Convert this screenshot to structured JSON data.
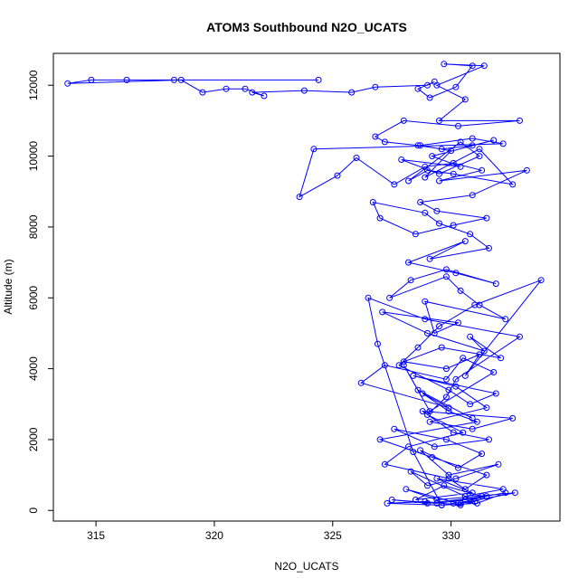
{
  "chart_data": {
    "type": "line",
    "title": "ATOM3 Southbound N2O_UCATS",
    "xlabel": "N2O_UCATS",
    "ylabel": "Altitude (m)",
    "xlim": [
      313.2,
      334.6
    ],
    "ylim": [
      -300,
      12900
    ],
    "x_ticks": [
      315,
      320,
      325,
      330
    ],
    "x_tick_labels": [
      "315",
      "320",
      "325",
      "330"
    ],
    "y_ticks": [
      0,
      2000,
      4000,
      6000,
      8000,
      10000,
      12000
    ],
    "y_tick_labels": [
      "0",
      "2000",
      "4000",
      "6000",
      "8000",
      "10000",
      "12000"
    ],
    "grid": false,
    "series": [
      {
        "color": "#0000ff",
        "marker": "open-circle",
        "x": [
          324.4,
          318.3,
          316.3,
          314.8,
          313.8,
          318.6,
          319.5,
          320.5,
          321.3,
          322.1,
          321.6,
          323.8,
          325.8,
          326.8,
          329.0,
          329.3,
          328.6,
          329.1,
          330.2,
          330.9,
          329.7,
          331.4,
          329.4,
          330.6,
          329.5,
          332.9,
          330.3,
          328.0,
          326.8,
          327.2,
          328.6,
          329.6,
          330.9,
          331.8,
          329.2,
          330.4,
          327.9,
          329.5,
          331.2,
          330.4,
          328.2,
          329.0,
          330.1,
          332.6,
          331.2,
          328.9,
          330.0,
          328.7,
          330.9,
          332.2,
          324.2,
          323.6,
          325.2,
          326.0,
          327.6,
          328.9,
          330.1,
          331.3,
          329.5,
          333.2,
          330.9,
          328.7,
          329.4,
          331.5,
          330.1,
          328.5,
          327.0,
          326.7,
          328.9,
          329.5,
          330.8,
          331.6,
          329.1,
          330.6,
          328.2,
          330.2,
          331.9,
          329.8,
          328.3,
          327.4,
          329.8,
          330.4,
          331.2,
          332.3,
          328.9,
          329.3,
          330.3,
          327.1,
          329.0,
          331.4,
          330.8,
          332.1,
          329.6,
          328.0,
          329.8,
          331.2,
          330.6,
          333.8,
          331.0,
          329.5,
          328.6,
          327.8,
          329.9,
          330.8,
          331.9,
          328.4,
          330.2,
          331.5,
          329.1,
          330.9,
          332.6,
          328.8,
          330.1,
          331.6,
          329.3,
          327.6,
          329.8,
          331.3,
          330.3,
          328.7,
          329.9,
          332.0,
          330.2,
          329.0,
          328.3,
          330.6,
          332.2,
          329.4,
          330.9,
          328.5,
          329.7,
          331.3,
          330.4,
          332.7,
          329.4,
          328.1,
          330.3,
          331.5,
          329.0,
          327.5,
          329.4,
          330.6,
          332.3,
          331.1,
          329.6,
          327.3,
          328.9,
          330.4,
          331.0,
          330.1,
          329.6,
          328.4,
          326.9,
          326.5,
          328.9,
          332.9,
          330.2,
          329.8,
          329.0,
          330.5,
          328.2,
          327.2,
          329.9,
          330.6,
          331.5,
          329.2,
          327.0,
          331.1,
          329.9,
          328.8,
          329.9,
          326.2,
          327.2,
          329.8,
          330.5,
          331.8,
          329.1,
          328.0,
          328.6,
          330.9
        ],
        "y": [
          12150,
          12150,
          12150,
          12150,
          12050,
          12150,
          11800,
          11900,
          11900,
          11700,
          11800,
          11850,
          11800,
          11950,
          12000,
          12100,
          11900,
          11650,
          11950,
          12550,
          12600,
          12550,
          12000,
          11600,
          11000,
          11000,
          10850,
          11000,
          10550,
          10400,
          10300,
          10200,
          10300,
          10450,
          10000,
          9700,
          9900,
          9500,
          10000,
          10400,
          9300,
          9600,
          9500,
          9200,
          10200,
          9400,
          10150,
          10300,
          10500,
          10350,
          10200,
          8850,
          9450,
          9950,
          9200,
          9700,
          9800,
          9600,
          9300,
          9600,
          8900,
          8700,
          8450,
          8250,
          8050,
          7800,
          8250,
          8700,
          8400,
          8100,
          7800,
          7400,
          7100,
          7600,
          7000,
          6700,
          6400,
          6800,
          6500,
          6000,
          6600,
          6200,
          5800,
          5400,
          5900,
          5000,
          5300,
          5600,
          5000,
          4500,
          4900,
          4300,
          4600,
          4200,
          4000,
          4400,
          3800,
          6500,
          5800,
          5200,
          4600,
          4100,
          3400,
          3000,
          3300,
          3800,
          3500,
          2900,
          2500,
          2300,
          2600,
          2800,
          2200,
          2000,
          1800,
          2300,
          2000,
          1600,
          1200,
          1700,
          1000,
          1300,
          900,
          700,
          1100,
          400,
          600,
          900,
          500,
          300,
          700,
          400,
          200,
          500,
          300,
          600,
          200,
          400,
          200,
          300,
          200,
          300,
          500,
          200,
          150,
          200,
          250,
          150,
          250,
          200,
          150,
          1650,
          4700,
          6000,
          5400,
          4900,
          3700,
          3200,
          2700,
          2200,
          1800,
          1300,
          900,
          600,
          1000,
          1500,
          2000,
          2500,
          2800,
          3300,
          2900,
          3600,
          4100,
          3700,
          4300,
          3900,
          2800,
          4100,
          3400,
          2600
        ]
      }
    ]
  }
}
